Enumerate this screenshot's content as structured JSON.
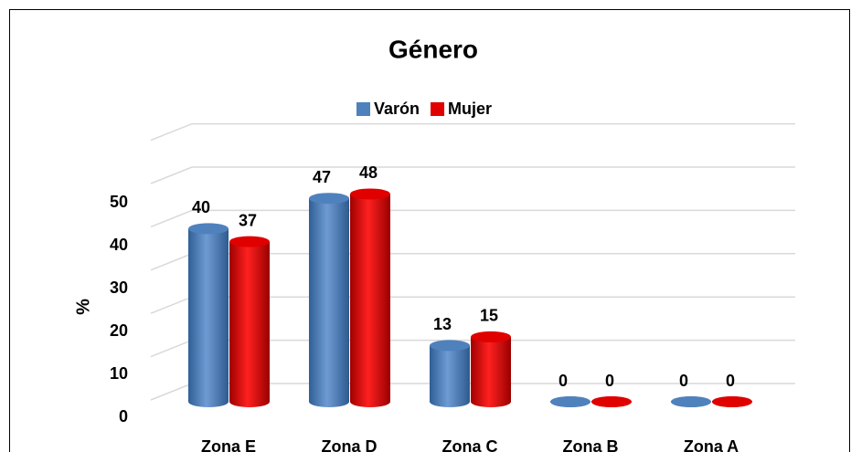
{
  "chart_data": {
    "type": "bar3d",
    "title": "Género",
    "y_label": "%",
    "categories": [
      "Zona E",
      "Zona D",
      "Zona C",
      "Zona B",
      "Zona A"
    ],
    "series": [
      {
        "name": "Varón",
        "color": "#4f81bd",
        "values": [
          40,
          47,
          13,
          0,
          0
        ]
      },
      {
        "name": "Mujer",
        "color": "#e00000",
        "values": [
          37,
          48,
          15,
          0,
          0
        ]
      }
    ],
    "ylim": [
      0,
      60
    ],
    "yticks": [
      0,
      10,
      20,
      30,
      40,
      50
    ],
    "grid": true,
    "legend": "top"
  }
}
